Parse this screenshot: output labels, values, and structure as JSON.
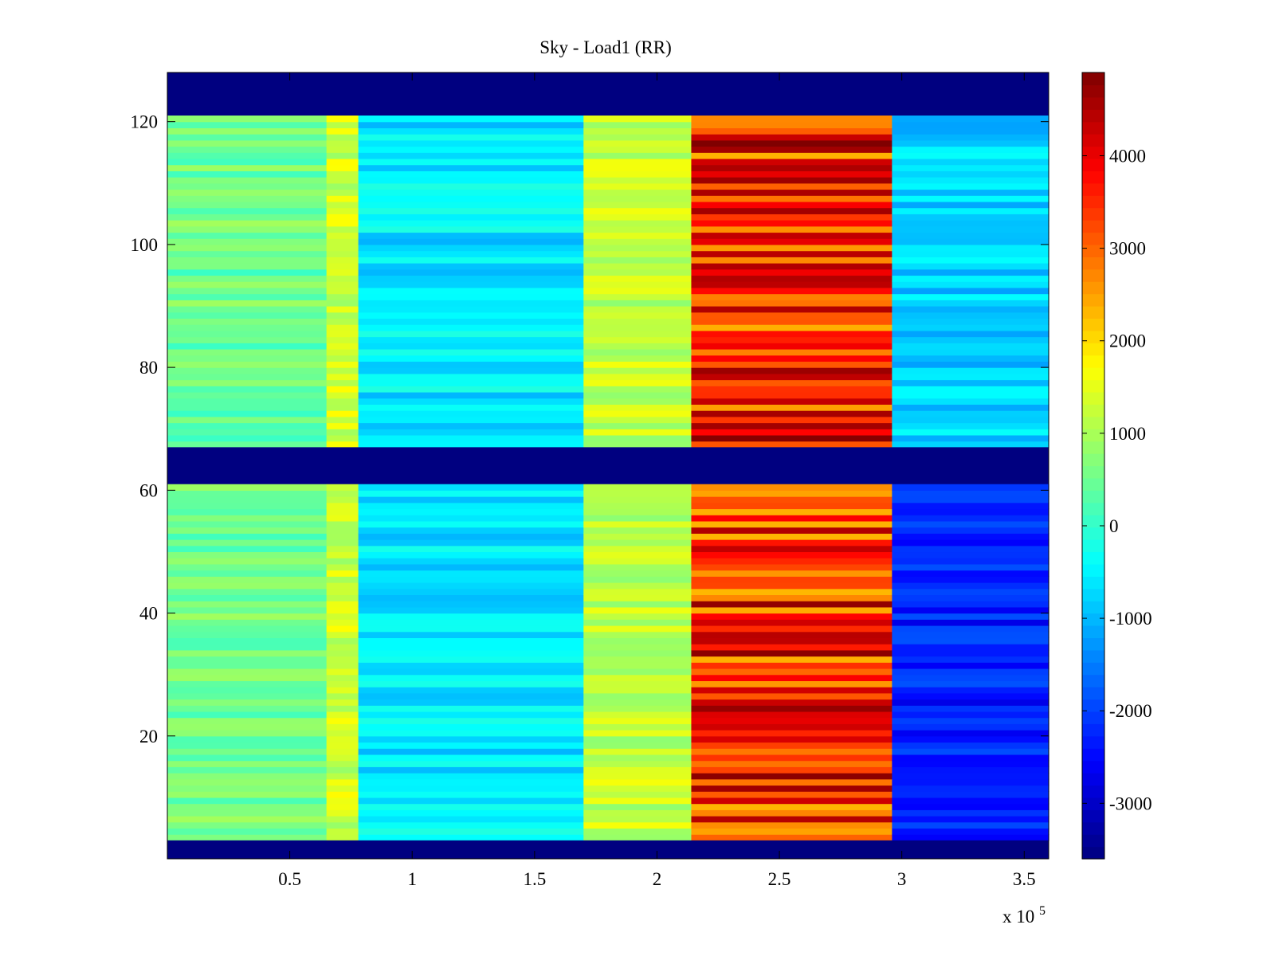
{
  "chart_data": {
    "type": "heatmap",
    "title": "Sky - Load1 (RR)",
    "xlabel": "",
    "ylabel": "",
    "x_multiplier_label": {
      "base": "x 10",
      "exponent": "5"
    },
    "xlim": [
      0,
      3.6
    ],
    "ylim": [
      0,
      128
    ],
    "xticks": [
      0.5,
      1,
      1.5,
      2,
      2.5,
      3,
      3.5
    ],
    "xtick_labels": [
      "0.5",
      "1",
      "1.5",
      "2",
      "2.5",
      "3",
      "3.5"
    ],
    "yticks": [
      20,
      40,
      60,
      80,
      100,
      120
    ],
    "ytick_labels": [
      "20",
      "40",
      "60",
      "80",
      "100",
      "120"
    ],
    "colorbar": {
      "colormap": "jet",
      "range": [
        -3600,
        4900
      ],
      "ticks": [
        -3000,
        -2000,
        -1000,
        0,
        1000,
        2000,
        3000,
        4000
      ],
      "tick_labels": [
        "-3000",
        "-2000",
        "-1000",
        "0",
        "1000",
        "2000",
        "3000",
        "4000"
      ]
    },
    "masked_rows": [
      [
        0,
        3
      ],
      [
        61,
        67
      ],
      [
        121,
        128
      ]
    ],
    "regions": [
      {
        "x_range": [
          0,
          0.65
        ],
        "value": 500
      },
      {
        "x_range": [
          0.65,
          0.78
        ],
        "value": 1300
      },
      {
        "x_range": [
          0.78,
          1.7
        ],
        "value": -600
      },
      {
        "x_range": [
          1.7,
          2.14
        ],
        "value": 1200
      },
      {
        "x_range": [
          2.14,
          2.96
        ],
        "value": 3600
      },
      {
        "x_range": [
          2.96,
          3.6
        ],
        "value": -800
      }
    ],
    "region_lower_right": {
      "x_range": [
        2.96,
        3.6
      ],
      "y_range": [
        3,
        61
      ],
      "value": -2300
    },
    "grid": false
  }
}
